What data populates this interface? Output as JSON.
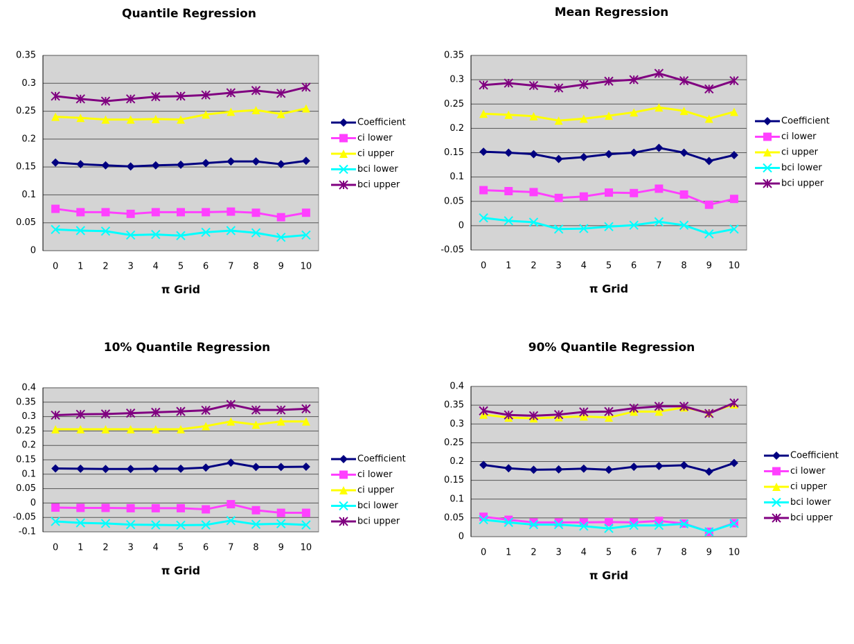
{
  "chart_data": [
    {
      "type": "line",
      "title": "Quantile Regression",
      "x_label": "π Grid",
      "categories": [
        "0",
        "1",
        "2",
        "3",
        "4",
        "5",
        "6",
        "7",
        "8",
        "9",
        "10"
      ],
      "ylim": [
        0,
        0.35
      ],
      "yticks": [
        0,
        0.05,
        0.1,
        0.15,
        0.2,
        0.25,
        0.3,
        0.35
      ],
      "grid": true,
      "legend": "right",
      "series": [
        {
          "name": "Coefficient",
          "color": "#000080",
          "marker": "diamond",
          "values": [
            0.158,
            0.155,
            0.153,
            0.151,
            0.153,
            0.154,
            0.157,
            0.16,
            0.16,
            0.155,
            0.161
          ]
        },
        {
          "name": "ci lower",
          "color": "#ff40ff",
          "marker": "square",
          "values": [
            0.075,
            0.069,
            0.069,
            0.066,
            0.069,
            0.069,
            0.069,
            0.07,
            0.068,
            0.06,
            0.068
          ]
        },
        {
          "name": "ci upper",
          "color": "#ffff00",
          "marker": "triangle",
          "values": [
            0.24,
            0.238,
            0.235,
            0.235,
            0.236,
            0.235,
            0.244,
            0.249,
            0.252,
            0.245,
            0.255
          ]
        },
        {
          "name": "bci lower",
          "color": "#00ffff",
          "marker": "x",
          "values": [
            0.038,
            0.036,
            0.035,
            0.028,
            0.029,
            0.027,
            0.033,
            0.036,
            0.032,
            0.024,
            0.028
          ]
        },
        {
          "name": "bci upper",
          "color": "#800080",
          "marker": "star",
          "values": [
            0.277,
            0.272,
            0.268,
            0.272,
            0.276,
            0.277,
            0.279,
            0.283,
            0.287,
            0.282,
            0.293
          ]
        }
      ]
    },
    {
      "type": "line",
      "title": "Mean Regression",
      "x_label": "π Grid",
      "categories": [
        "0",
        "1",
        "2",
        "3",
        "4",
        "5",
        "6",
        "7",
        "8",
        "9",
        "10"
      ],
      "ylim": [
        -0.05,
        0.35
      ],
      "yticks": [
        -0.05,
        0,
        0.05,
        0.1,
        0.15,
        0.2,
        0.25,
        0.3,
        0.35
      ],
      "grid": true,
      "legend": "right",
      "series": [
        {
          "name": "Coefficient",
          "color": "#000080",
          "marker": "diamond",
          "values": [
            0.152,
            0.15,
            0.147,
            0.137,
            0.141,
            0.147,
            0.15,
            0.16,
            0.15,
            0.133,
            0.145
          ]
        },
        {
          "name": "ci lower",
          "color": "#ff40ff",
          "marker": "square",
          "values": [
            0.073,
            0.071,
            0.069,
            0.057,
            0.06,
            0.068,
            0.067,
            0.076,
            0.064,
            0.043,
            0.055
          ]
        },
        {
          "name": "ci upper",
          "color": "#ffff00",
          "marker": "triangle",
          "values": [
            0.23,
            0.228,
            0.225,
            0.216,
            0.22,
            0.226,
            0.233,
            0.243,
            0.236,
            0.22,
            0.234
          ]
        },
        {
          "name": "bci lower",
          "color": "#00ffff",
          "marker": "x",
          "values": [
            0.016,
            0.01,
            0.007,
            -0.007,
            -0.006,
            -0.002,
            0.001,
            0.008,
            0.001,
            -0.017,
            -0.007
          ]
        },
        {
          "name": "bci upper",
          "color": "#800080",
          "marker": "star",
          "values": [
            0.289,
            0.293,
            0.288,
            0.283,
            0.29,
            0.297,
            0.3,
            0.313,
            0.298,
            0.281,
            0.298
          ]
        }
      ]
    },
    {
      "type": "line",
      "title": "10% Quantile Regression",
      "x_label": "π Grid",
      "categories": [
        "0",
        "1",
        "2",
        "3",
        "4",
        "5",
        "6",
        "7",
        "8",
        "9",
        "10"
      ],
      "ylim": [
        -0.1,
        0.4
      ],
      "yticks": [
        -0.1,
        -0.05,
        0,
        0.05,
        0.1,
        0.15,
        0.2,
        0.25,
        0.3,
        0.35,
        0.4
      ],
      "grid": true,
      "legend": "right",
      "series": [
        {
          "name": "Coefficient",
          "color": "#000080",
          "marker": "diamond",
          "values": [
            0.12,
            0.119,
            0.118,
            0.118,
            0.119,
            0.119,
            0.123,
            0.14,
            0.125,
            0.125,
            0.126
          ]
        },
        {
          "name": "ci lower",
          "color": "#ff40ff",
          "marker": "square",
          "values": [
            -0.016,
            -0.017,
            -0.017,
            -0.018,
            -0.018,
            -0.018,
            -0.022,
            -0.004,
            -0.025,
            -0.034,
            -0.034
          ]
        },
        {
          "name": "ci upper",
          "color": "#ffff00",
          "marker": "triangle",
          "values": [
            0.256,
            0.256,
            0.256,
            0.256,
            0.256,
            0.256,
            0.267,
            0.283,
            0.272,
            0.283,
            0.283
          ]
        },
        {
          "name": "bci lower",
          "color": "#00ffff",
          "marker": "x",
          "values": [
            -0.064,
            -0.069,
            -0.071,
            -0.075,
            -0.076,
            -0.077,
            -0.076,
            -0.061,
            -0.074,
            -0.072,
            -0.076
          ]
        },
        {
          "name": "bci upper",
          "color": "#800080",
          "marker": "star",
          "values": [
            0.305,
            0.308,
            0.309,
            0.312,
            0.315,
            0.318,
            0.322,
            0.342,
            0.323,
            0.323,
            0.327
          ]
        }
      ]
    },
    {
      "type": "line",
      "title": "90% Quantile Regression",
      "x_label": "π Grid",
      "categories": [
        "0",
        "1",
        "2",
        "3",
        "4",
        "5",
        "6",
        "7",
        "8",
        "9",
        "10"
      ],
      "ylim": [
        0,
        0.4
      ],
      "yticks": [
        0,
        0.05,
        0.1,
        0.15,
        0.2,
        0.25,
        0.3,
        0.35,
        0.4
      ],
      "grid": true,
      "legend": "right",
      "series": [
        {
          "name": "Coefficient",
          "color": "#000080",
          "marker": "diamond",
          "values": [
            0.191,
            0.182,
            0.178,
            0.179,
            0.181,
            0.178,
            0.186,
            0.188,
            0.19,
            0.173,
            0.196
          ]
        },
        {
          "name": "ci lower",
          "color": "#ff40ff",
          "marker": "square",
          "values": [
            0.053,
            0.045,
            0.038,
            0.038,
            0.038,
            0.039,
            0.038,
            0.042,
            0.035,
            0.013,
            0.036
          ]
        },
        {
          "name": "ci upper",
          "color": "#ffff00",
          "marker": "triangle",
          "values": [
            0.325,
            0.317,
            0.315,
            0.318,
            0.32,
            0.317,
            0.333,
            0.333,
            0.344,
            0.33,
            0.352
          ]
        },
        {
          "name": "bci lower",
          "color": "#00ffff",
          "marker": "x",
          "values": [
            0.045,
            0.038,
            0.032,
            0.032,
            0.028,
            0.022,
            0.03,
            0.03,
            0.034,
            0.013,
            0.035
          ]
        },
        {
          "name": "bci upper",
          "color": "#800080",
          "marker": "star",
          "values": [
            0.335,
            0.324,
            0.322,
            0.325,
            0.332,
            0.333,
            0.342,
            0.347,
            0.347,
            0.328,
            0.356
          ]
        }
      ]
    }
  ]
}
